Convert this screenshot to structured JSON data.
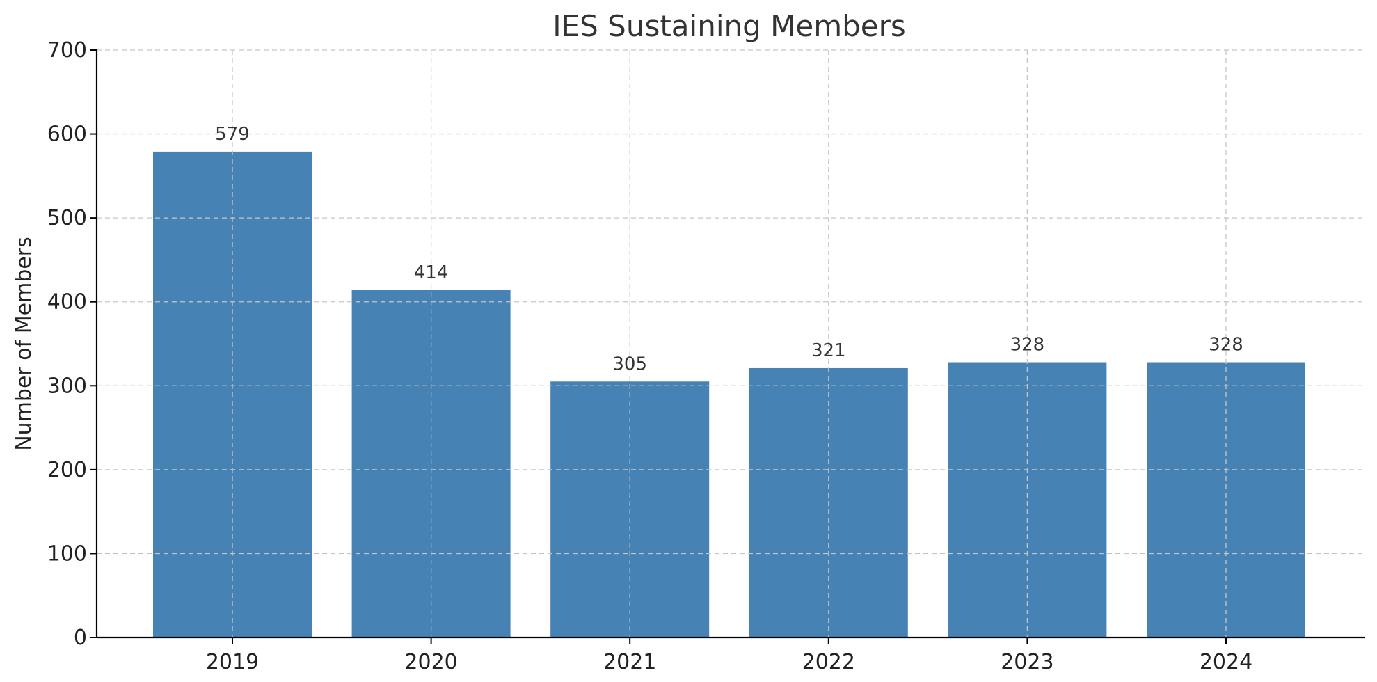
{
  "chart_data": {
    "type": "bar",
    "title": "IES Sustaining Members",
    "xlabel": "",
    "ylabel": "Number of Members",
    "categories": [
      "2019",
      "2020",
      "2021",
      "2022",
      "2023",
      "2024"
    ],
    "values": [
      579,
      414,
      305,
      321,
      328,
      328
    ],
    "data_labels": [
      "579",
      "414",
      "305",
      "321",
      "328",
      "328"
    ],
    "ylim": [
      0,
      700
    ],
    "yticks": [
      0,
      100,
      200,
      300,
      400,
      500,
      600,
      700
    ],
    "ytick_labels": [
      "0",
      "100",
      "200",
      "300",
      "400",
      "500",
      "600",
      "700"
    ],
    "grid": true,
    "bar_color": "#4682b4",
    "grid_color": "#c6c6c6"
  }
}
